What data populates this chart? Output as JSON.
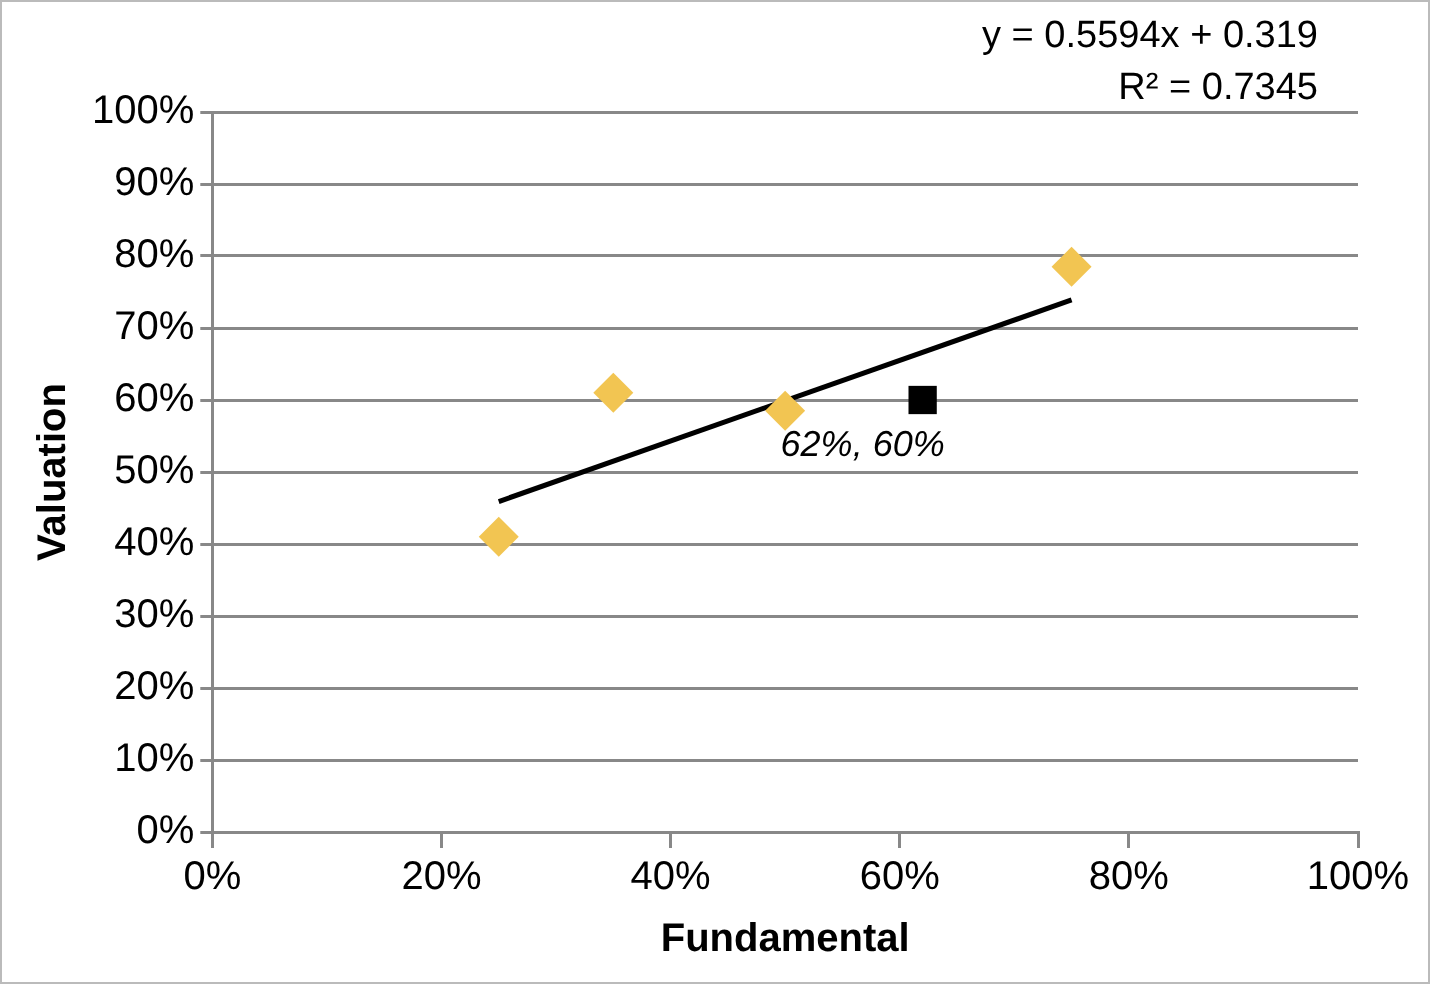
{
  "chart_data": {
    "type": "scatter",
    "xlabel": "Fundamental",
    "ylabel": "Valuation",
    "xlim": [
      0,
      100
    ],
    "xticks": [
      {
        "value": 0,
        "label": "0%"
      },
      {
        "value": 20,
        "label": "20%"
      },
      {
        "value": 40,
        "label": "40%"
      },
      {
        "value": 60,
        "label": "60%"
      },
      {
        "value": 80,
        "label": "80%"
      },
      {
        "value": 100,
        "label": "100%"
      }
    ],
    "ylim": [
      0,
      100
    ],
    "yticks": [
      {
        "value": 0,
        "label": "0%"
      },
      {
        "value": 10,
        "label": "10%"
      },
      {
        "value": 20,
        "label": "20%"
      },
      {
        "value": 30,
        "label": "30%"
      },
      {
        "value": 40,
        "label": "40%"
      },
      {
        "value": 50,
        "label": "50%"
      },
      {
        "value": 60,
        "label": "60%"
      },
      {
        "value": 70,
        "label": "70%"
      },
      {
        "value": 80,
        "label": "80%"
      },
      {
        "value": 90,
        "label": "90%"
      },
      {
        "value": 100,
        "label": "100%"
      }
    ],
    "grid": "y",
    "legend": false,
    "annotations": [
      "y = 0.5594x + 0.319",
      "R² = 0.7345"
    ],
    "series": [
      {
        "color": "#f2c552",
        "marker": "diamond",
        "x": [
          25,
          35,
          50,
          75
        ],
        "values": [
          41,
          61,
          58.5,
          78.5
        ]
      },
      {
        "color": "#000000",
        "marker": "square",
        "x": [
          62
        ],
        "values": [
          60
        ],
        "value_labels": [
          "62%, 60%"
        ]
      },
      {
        "type": "line",
        "color": "#000000",
        "marker": "none",
        "x": [
          25,
          75
        ],
        "values": [
          45.9,
          73.9
        ]
      }
    ]
  }
}
